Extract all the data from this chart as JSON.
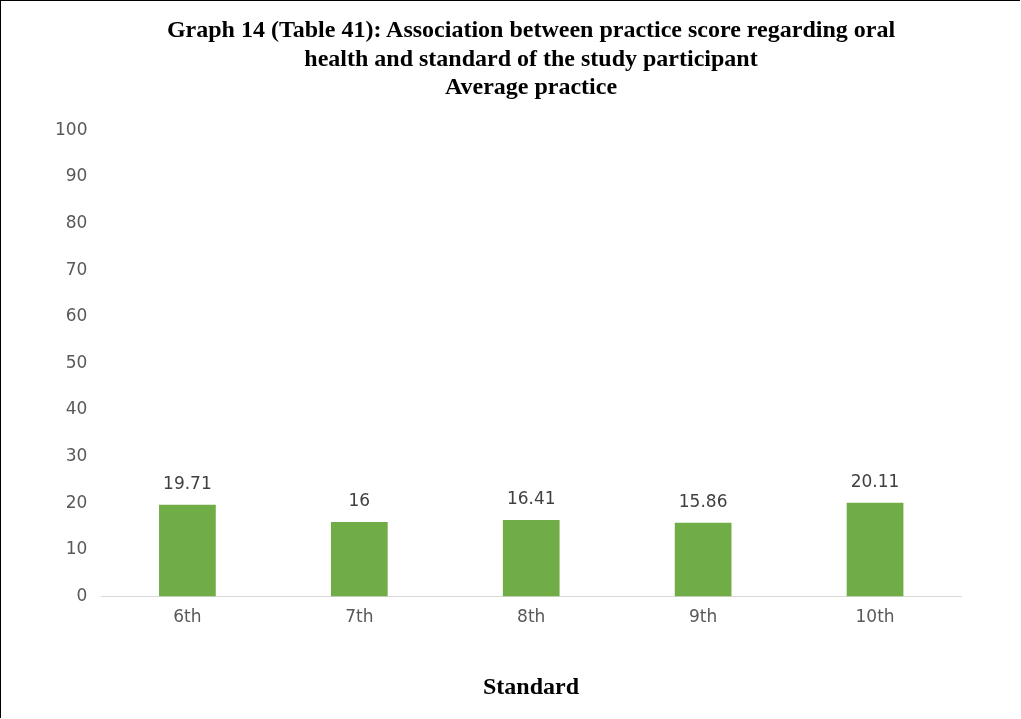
{
  "chart_data": {
    "type": "bar",
    "title": "Graph 14 (Table 41): Association between practice score regarding oral health and standard of the study participant",
    "subtitle": "Average practice",
    "xlabel": "Standard",
    "categories": [
      "6th",
      "7th",
      "8th",
      "9th",
      "10th"
    ],
    "values": [
      19.71,
      16,
      16.41,
      15.86,
      20.11
    ],
    "color": "#70ad47",
    "ylim": [
      0,
      100
    ],
    "yticks": [
      0,
      10,
      20,
      30,
      40,
      50,
      60,
      70,
      80,
      90,
      100
    ],
    "grid": false,
    "legend": false,
    "data_labels": true
  }
}
